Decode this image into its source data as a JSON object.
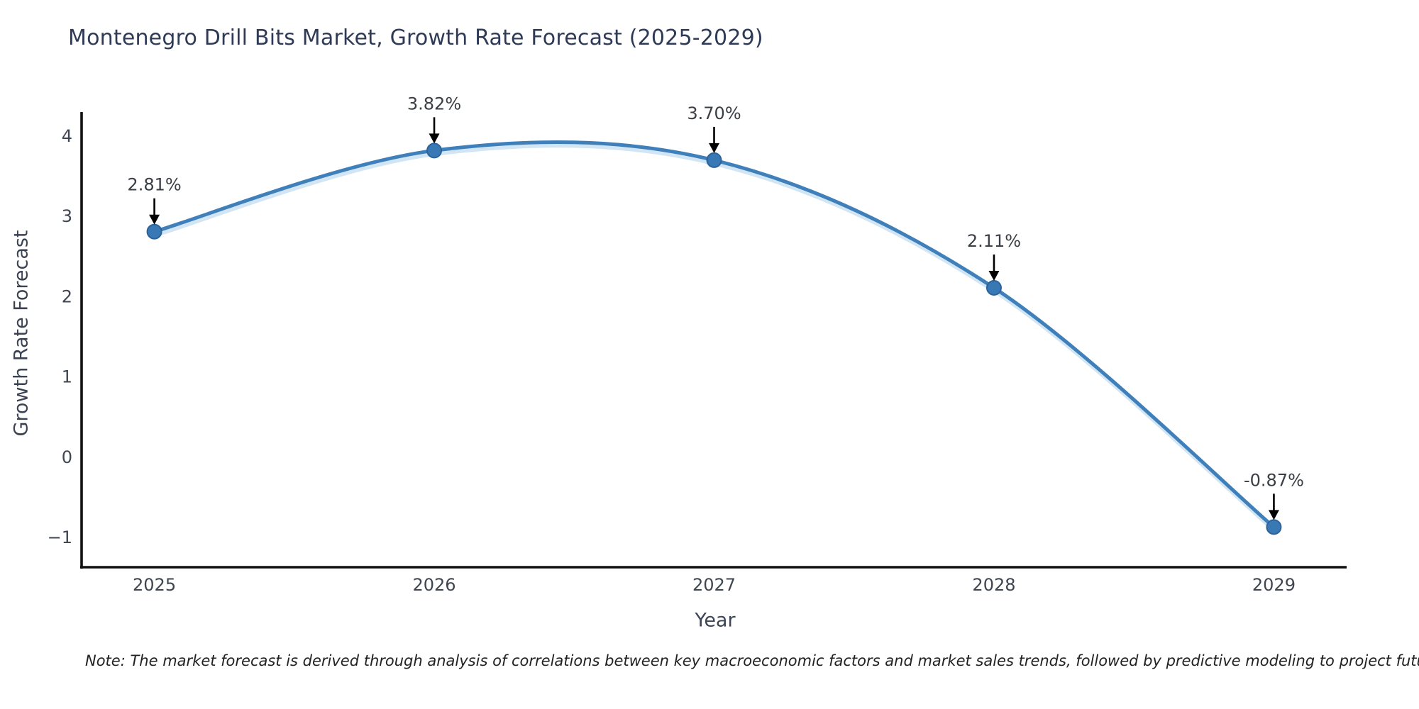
{
  "title": "Montenegro Drill Bits Market, Growth Rate Forecast (2025-2029)",
  "note": "Note: The market forecast is derived through analysis of correlations between key macroeconomic factors and market sales trends, followed by predictive modeling to project future sales",
  "chart_data": {
    "type": "line",
    "title": "Montenegro Drill Bits Market, Growth Rate Forecast (2025-2029)",
    "xlabel": "Year",
    "ylabel": "Growth Rate Forecast",
    "x": [
      2025,
      2026,
      2027,
      2028,
      2029
    ],
    "values": [
      2.81,
      3.82,
      3.7,
      2.11,
      -0.87
    ],
    "point_labels": [
      "2.81%",
      "3.82%",
      "3.70%",
      "2.11%",
      "-0.87%"
    ],
    "xtick_labels": [
      "2025",
      "2026",
      "2027",
      "2028",
      "2029"
    ],
    "ytick_values": [
      4,
      3,
      2,
      1,
      0,
      -1
    ],
    "ytick_labels": [
      "4",
      "3",
      "2",
      "1",
      "0",
      "−1"
    ],
    "xlim": [
      2024.74,
      2029.26
    ],
    "ylim": [
      -1.37,
      4.3
    ],
    "grid": false,
    "legend": null,
    "marker_size": 10,
    "colors": {
      "line": "#3f7fba",
      "line_shadow": "#b9d7ee",
      "marker_fill": "#3878b4",
      "marker_edge": "#2d639b",
      "annotation_text": "#3a3e45",
      "annotation_arrow": "#000000",
      "axis_spine": "#111111",
      "tick_label": "#3f4650",
      "title": "#2f3b56"
    }
  }
}
